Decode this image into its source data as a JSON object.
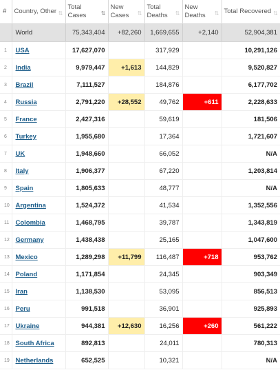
{
  "headers": {
    "num": "#",
    "country": "Country, Other",
    "total_cases": "Total Cases",
    "new_cases": "New Cases",
    "total_deaths": "Total Deaths",
    "new_deaths": "New Deaths",
    "total_recovered": "Total Recovered"
  },
  "icons": {
    "sort": "sort-arrows-icon"
  },
  "colors": {
    "new_cases_highlight": "#ffeeaa",
    "new_deaths_highlight": "#ff0000",
    "world_row_bg": "#e2e2e2",
    "link": "#1c5d8a"
  },
  "world": {
    "country": "World",
    "total_cases": "75,343,404",
    "new_cases": "+82,260",
    "total_deaths": "1,669,655",
    "new_deaths": "+2,140",
    "total_recovered": "52,904,381"
  },
  "rows": [
    {
      "num": "1",
      "country": "USA",
      "total_cases": "17,627,070",
      "new_cases": "",
      "total_deaths": "317,929",
      "new_deaths": "",
      "total_recovered": "10,291,126"
    },
    {
      "num": "2",
      "country": "India",
      "total_cases": "9,979,447",
      "new_cases": "+1,613",
      "total_deaths": "144,829",
      "new_deaths": "",
      "total_recovered": "9,520,827"
    },
    {
      "num": "3",
      "country": "Brazil",
      "total_cases": "7,111,527",
      "new_cases": "",
      "total_deaths": "184,876",
      "new_deaths": "",
      "total_recovered": "6,177,702"
    },
    {
      "num": "4",
      "country": "Russia",
      "total_cases": "2,791,220",
      "new_cases": "+28,552",
      "total_deaths": "49,762",
      "new_deaths": "+611",
      "total_recovered": "2,228,633"
    },
    {
      "num": "5",
      "country": "France",
      "total_cases": "2,427,316",
      "new_cases": "",
      "total_deaths": "59,619",
      "new_deaths": "",
      "total_recovered": "181,506"
    },
    {
      "num": "6",
      "country": "Turkey",
      "total_cases": "1,955,680",
      "new_cases": "",
      "total_deaths": "17,364",
      "new_deaths": "",
      "total_recovered": "1,721,607"
    },
    {
      "num": "7",
      "country": "UK",
      "total_cases": "1,948,660",
      "new_cases": "",
      "total_deaths": "66,052",
      "new_deaths": "",
      "total_recovered": "N/A"
    },
    {
      "num": "8",
      "country": "Italy",
      "total_cases": "1,906,377",
      "new_cases": "",
      "total_deaths": "67,220",
      "new_deaths": "",
      "total_recovered": "1,203,814"
    },
    {
      "num": "9",
      "country": "Spain",
      "total_cases": "1,805,633",
      "new_cases": "",
      "total_deaths": "48,777",
      "new_deaths": "",
      "total_recovered": "N/A"
    },
    {
      "num": "10",
      "country": "Argentina",
      "total_cases": "1,524,372",
      "new_cases": "",
      "total_deaths": "41,534",
      "new_deaths": "",
      "total_recovered": "1,352,556"
    },
    {
      "num": "11",
      "country": "Colombia",
      "total_cases": "1,468,795",
      "new_cases": "",
      "total_deaths": "39,787",
      "new_deaths": "",
      "total_recovered": "1,343,819"
    },
    {
      "num": "12",
      "country": "Germany",
      "total_cases": "1,438,438",
      "new_cases": "",
      "total_deaths": "25,165",
      "new_deaths": "",
      "total_recovered": "1,047,600"
    },
    {
      "num": "13",
      "country": "Mexico",
      "total_cases": "1,289,298",
      "new_cases": "+11,799",
      "total_deaths": "116,487",
      "new_deaths": "+718",
      "total_recovered": "953,762"
    },
    {
      "num": "14",
      "country": "Poland",
      "total_cases": "1,171,854",
      "new_cases": "",
      "total_deaths": "24,345",
      "new_deaths": "",
      "total_recovered": "903,349"
    },
    {
      "num": "15",
      "country": "Iran",
      "total_cases": "1,138,530",
      "new_cases": "",
      "total_deaths": "53,095",
      "new_deaths": "",
      "total_recovered": "856,513"
    },
    {
      "num": "16",
      "country": "Peru",
      "total_cases": "991,518",
      "new_cases": "",
      "total_deaths": "36,901",
      "new_deaths": "",
      "total_recovered": "925,893"
    },
    {
      "num": "17",
      "country": "Ukraine",
      "total_cases": "944,381",
      "new_cases": "+12,630",
      "total_deaths": "16,256",
      "new_deaths": "+260",
      "total_recovered": "561,222"
    },
    {
      "num": "18",
      "country": "South Africa",
      "total_cases": "892,813",
      "new_cases": "",
      "total_deaths": "24,011",
      "new_deaths": "",
      "total_recovered": "780,313"
    },
    {
      "num": "19",
      "country": "Netherlands",
      "total_cases": "652,525",
      "new_cases": "",
      "total_deaths": "10,321",
      "new_deaths": "",
      "total_recovered": "N/A"
    }
  ]
}
